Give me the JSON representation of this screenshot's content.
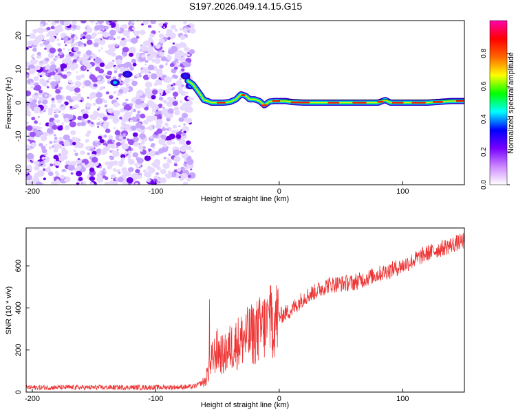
{
  "title": "S197.2026.049.14.15.G15",
  "chart_data": [
    {
      "type": "heatmap",
      "name": "spectrogram",
      "xlabel": "Height of straight line (km)",
      "ylabel": "Frequency (Hz)",
      "xlim": [
        -205,
        150
      ],
      "ylim": [
        -24.5,
        24.5
      ],
      "xticks": [
        -200,
        -100,
        0,
        100
      ],
      "yticks": [
        -20,
        -10,
        0,
        10,
        20
      ],
      "tone": {
        "x": [
          -74,
          -70,
          -67,
          -64,
          -61,
          -58,
          -55,
          -50,
          -45,
          -40,
          -35,
          -31,
          -27,
          -24,
          -20,
          -16,
          -12,
          -8,
          -4,
          0,
          5,
          10,
          20,
          40,
          60,
          80,
          86,
          90,
          100,
          120,
          140,
          150
        ],
        "freq": [
          6.5,
          5.5,
          4,
          2.5,
          0.8,
          0.5,
          0,
          0,
          0,
          0.2,
          1,
          2.5,
          2,
          1,
          1,
          0.5,
          -0.8,
          0.3,
          0.5,
          0.5,
          0.5,
          0.2,
          0,
          0,
          0,
          0,
          0.8,
          0,
          0,
          0,
          0.5,
          0.5
        ]
      },
      "colorbar": {
        "label": "Normalized spectral amplitude",
        "range": [
          0,
          1
        ],
        "ticks": [
          "0.0",
          "0.2",
          "0.4",
          "0.6",
          "0.8"
        ],
        "tick_values": [
          0,
          0.2,
          0.4,
          0.6,
          0.8
        ]
      }
    },
    {
      "type": "line",
      "name": "snr",
      "xlabel": "Height of straight line (km)",
      "ylabel": "SNR (10 * v/v)",
      "xlim": [
        -205,
        150
      ],
      "ylim": [
        0,
        780
      ],
      "xticks": [
        -200,
        -100,
        0,
        100
      ],
      "yticks": [
        0,
        200,
        400,
        600
      ],
      "color": "#ee3333",
      "trend": {
        "x": [
          -205,
          -180,
          -150,
          -100,
          -70,
          -60,
          -55,
          -50,
          -45,
          -40,
          -30,
          -20,
          -10,
          0,
          10,
          20,
          40,
          60,
          80,
          100,
          120,
          140,
          150
        ],
        "y": [
          22,
          22,
          22,
          22,
          25,
          50,
          150,
          200,
          170,
          210,
          250,
          280,
          320,
          360,
          390,
          450,
          510,
          520,
          560,
          600,
          660,
          700,
          720
        ]
      }
    }
  ],
  "colorbar_colors": [
    "#ffffff",
    "#cc88ff",
    "#7700ff",
    "#0000ff",
    "#00ffff",
    "#00ff00",
    "#ffff00",
    "#ff6600",
    "#ff0000",
    "#ff00aa"
  ]
}
